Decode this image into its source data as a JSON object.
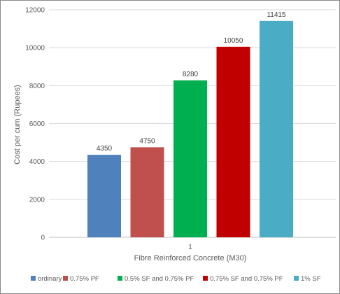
{
  "chart_data": {
    "type": "bar",
    "categories": [
      "1"
    ],
    "series": [
      {
        "name": "ordinary",
        "values": [
          4350
        ],
        "color": "#4f81bd"
      },
      {
        "name": "0.75% PF",
        "values": [
          4750
        ],
        "color": "#c0504d"
      },
      {
        "name": "0.5% SF and 0.75% PF",
        "values": [
          8280
        ],
        "color": "#00b050"
      },
      {
        "name": "0.75% SF and 0.75% PF",
        "values": [
          10050
        ],
        "color": "#c00000"
      },
      {
        "name": "1% SF",
        "values": [
          11415
        ],
        "color": "#4bacc6"
      }
    ],
    "xlabel": "Fibre Reinforced Concrete (M30)",
    "ylabel": "Cost per cum (Rupees)",
    "ylim": [
      0,
      12000
    ],
    "yticks": [
      0,
      2000,
      4000,
      6000,
      8000,
      10000,
      12000
    ],
    "grid": true,
    "legend_position": "bottom",
    "data_labels": true
  }
}
